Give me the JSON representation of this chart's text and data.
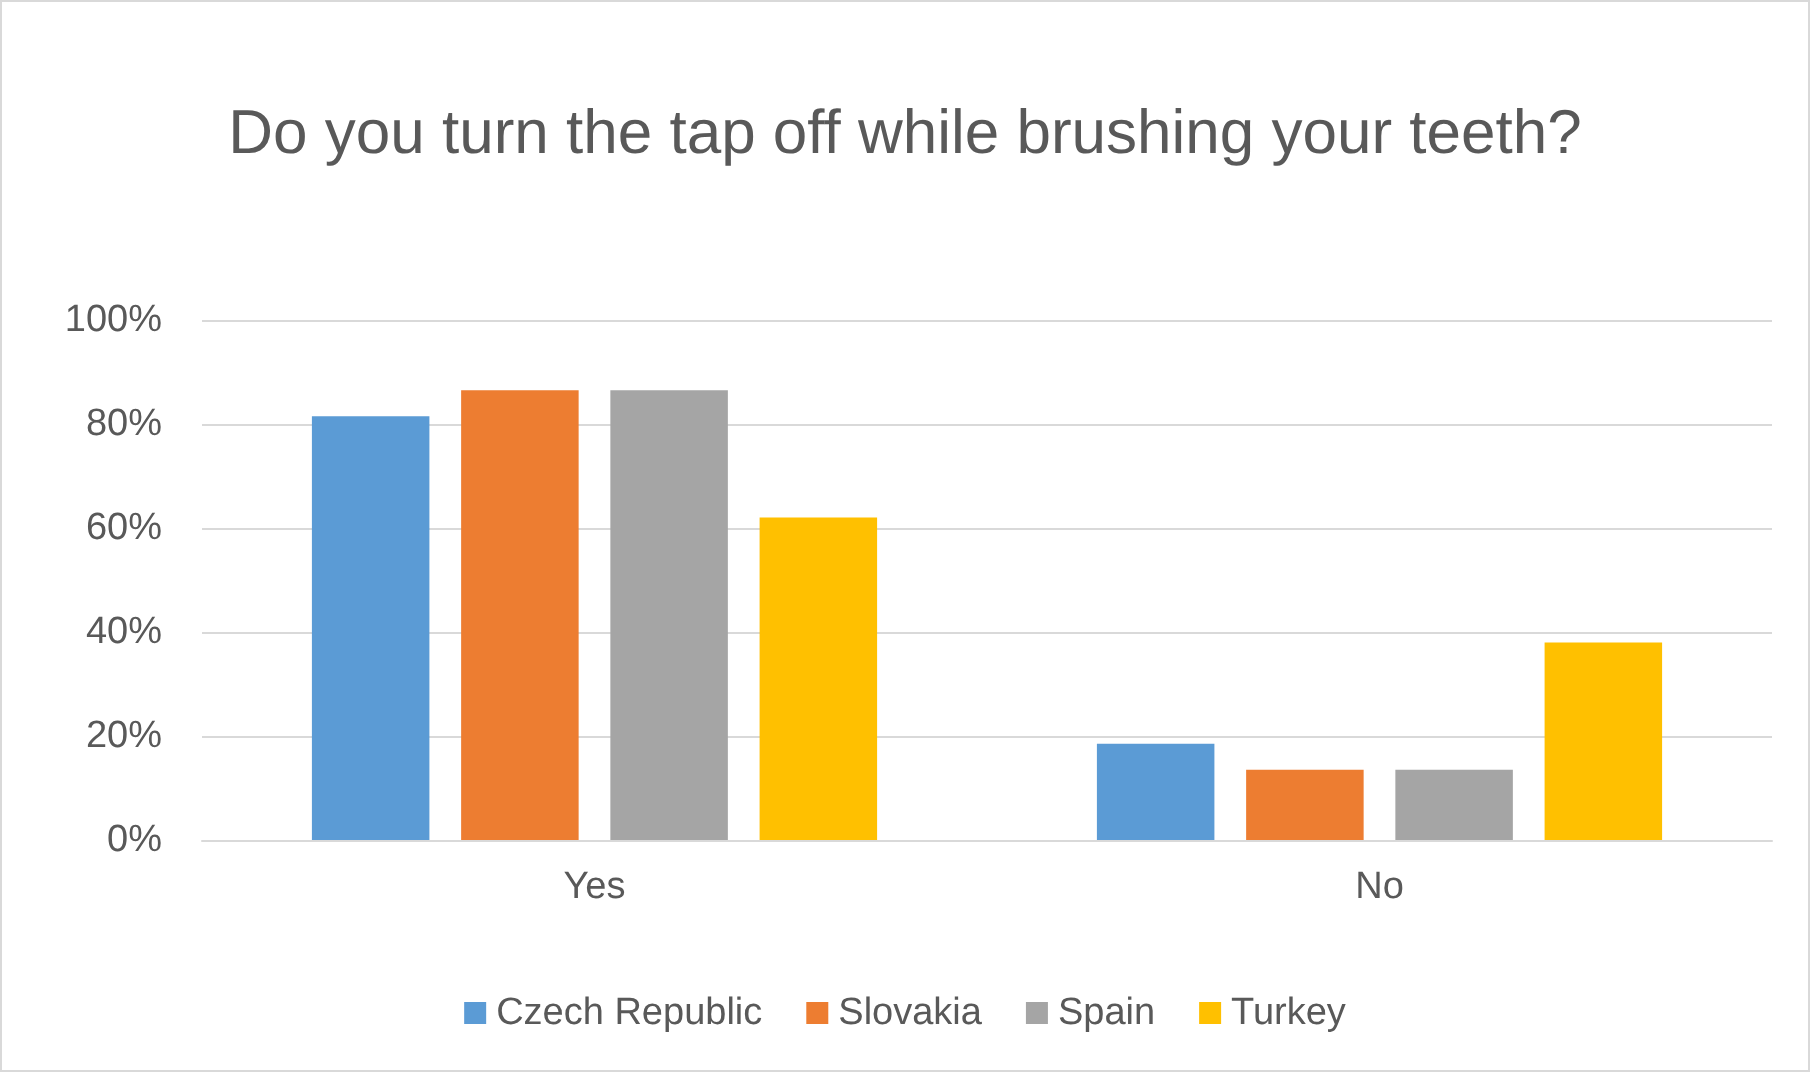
{
  "chart_data": {
    "type": "bar",
    "title": "Do you turn the tap off while brushing your teeth?",
    "categories": [
      "Yes",
      "No"
    ],
    "series": [
      {
        "name": "Czech Republic",
        "color": "#5b9bd5",
        "values": [
          81.5,
          18.5
        ]
      },
      {
        "name": "Slovakia",
        "color": "#ed7d31",
        "values": [
          86.5,
          13.5
        ]
      },
      {
        "name": "Spain",
        "color": "#a5a5a5",
        "values": [
          86.5,
          13.5
        ]
      },
      {
        "name": "Turkey",
        "color": "#ffc000",
        "values": [
          62,
          38
        ]
      }
    ],
    "ylim": [
      0,
      100
    ],
    "yticks": [
      {
        "value": 0,
        "label": "0%"
      },
      {
        "value": 20,
        "label": "20%"
      },
      {
        "value": 40,
        "label": "40%"
      },
      {
        "value": 60,
        "label": "60%"
      },
      {
        "value": 80,
        "label": "80%"
      },
      {
        "value": 100,
        "label": "100%"
      }
    ],
    "grid": "y",
    "legend": "bottom"
  }
}
